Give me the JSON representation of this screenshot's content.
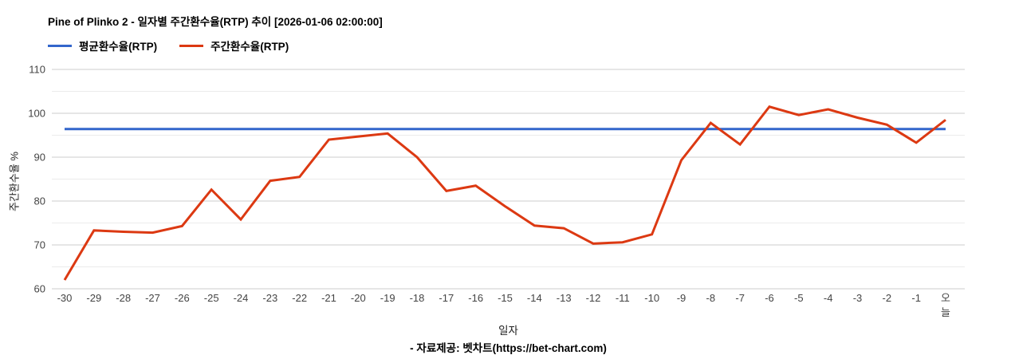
{
  "title": "Pine of Plinko 2 - 일자별 주간환수율(RTP) 추이 [2026-01-06 02:00:00]",
  "legend": [
    {
      "label": "평균환수율(RTP)",
      "color": "#3366cc"
    },
    {
      "label": "주간환수율(RTP)",
      "color": "#dc3912"
    }
  ],
  "footer": "- 자료제공: 벳차트(https://bet-chart.com)",
  "chart_data": {
    "type": "line",
    "title": "Pine of Plinko 2 - 일자별 주간환수율(RTP) 추이 [2026-01-06 02:00:00]",
    "xlabel": "일자",
    "ylabel": "주간환수율 %",
    "ylim": [
      60,
      110
    ],
    "yticks": [
      60,
      70,
      80,
      90,
      100,
      110
    ],
    "yticks_minor": [
      65,
      75,
      85,
      95,
      105
    ],
    "grid": true,
    "legend_position": "top",
    "x": [
      "-30",
      "-29",
      "-28",
      "-27",
      "-26",
      "-25",
      "-24",
      "-23",
      "-22",
      "-21",
      "-20",
      "-19",
      "-18",
      "-17",
      "-16",
      "-15",
      "-14",
      "-13",
      "-12",
      "-11",
      "-10",
      "-9",
      "-8",
      "-7",
      "-6",
      "-5",
      "-4",
      "-3",
      "-2",
      "-1",
      "오늘"
    ],
    "series": [
      {
        "name": "평균환수율(RTP)",
        "color": "#3366cc",
        "constant": 96.4
      },
      {
        "name": "주간환수율(RTP)",
        "color": "#dc3912",
        "values": [
          62,
          73.3,
          73,
          72.8,
          74.3,
          82.6,
          75.8,
          84.6,
          85.5,
          94,
          94.7,
          95.4,
          90,
          82.3,
          83.5,
          78.8,
          74.4,
          73.8,
          70.3,
          70.6,
          72.4,
          89.3,
          97.8,
          92.9,
          101.5,
          99.6,
          100.9,
          99,
          97.4,
          93.3,
          98.5
        ]
      }
    ],
    "axis_text_color": "#444444",
    "major_grid_color": "#cccccc",
    "minor_grid_color": "#ebebeb"
  }
}
